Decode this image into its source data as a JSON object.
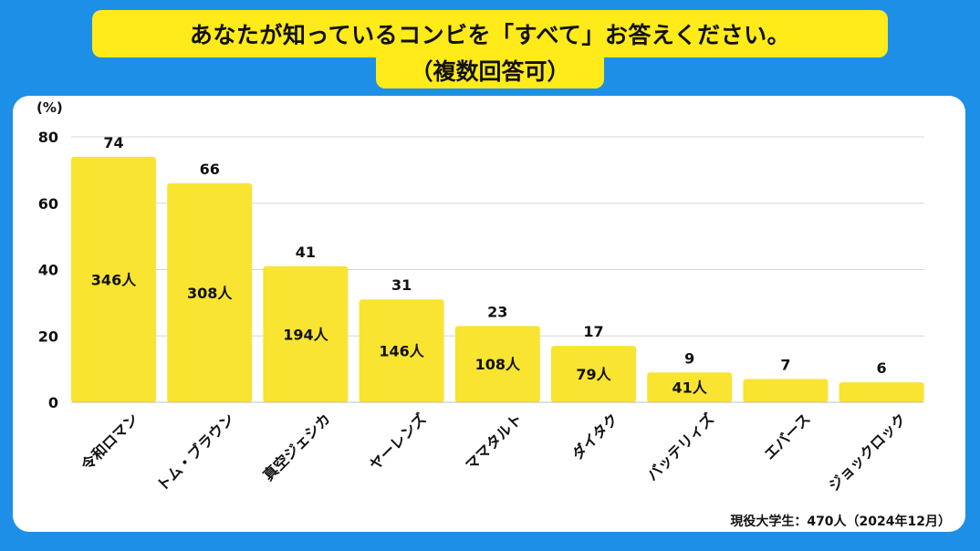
{
  "title": {
    "line1": "あなたが知っているコンビを「すべて」お答えください。",
    "line2": "（複数回答可）"
  },
  "footer": "現役大学生：470人（2024年12月）",
  "colors": {
    "background": "#1e8fe6",
    "bar": "#f8e431",
    "title_bg": "#ffea1a"
  },
  "chart_data": {
    "type": "bar",
    "title": "あなたが知っているコンビを「すべて」お答えください。（複数回答可）",
    "ylabel": "(%)",
    "xlabel": "",
    "ylim": [
      0,
      80
    ],
    "yticks": [
      0,
      20,
      40,
      60,
      80
    ],
    "grid": true,
    "categories": [
      "令和ロマン",
      "トム・ブラウン",
      "真空ジェシカ",
      "ヤーレンズ",
      "ママタルト",
      "ダイタク",
      "バッテリィズ",
      "エバース",
      "ジョックロック"
    ],
    "values": [
      74,
      66,
      41,
      31,
      23,
      17,
      9,
      7,
      6
    ],
    "counts": [
      "346人",
      "308人",
      "194人",
      "146人",
      "108人",
      "79人",
      "41人",
      "",
      ""
    ]
  }
}
